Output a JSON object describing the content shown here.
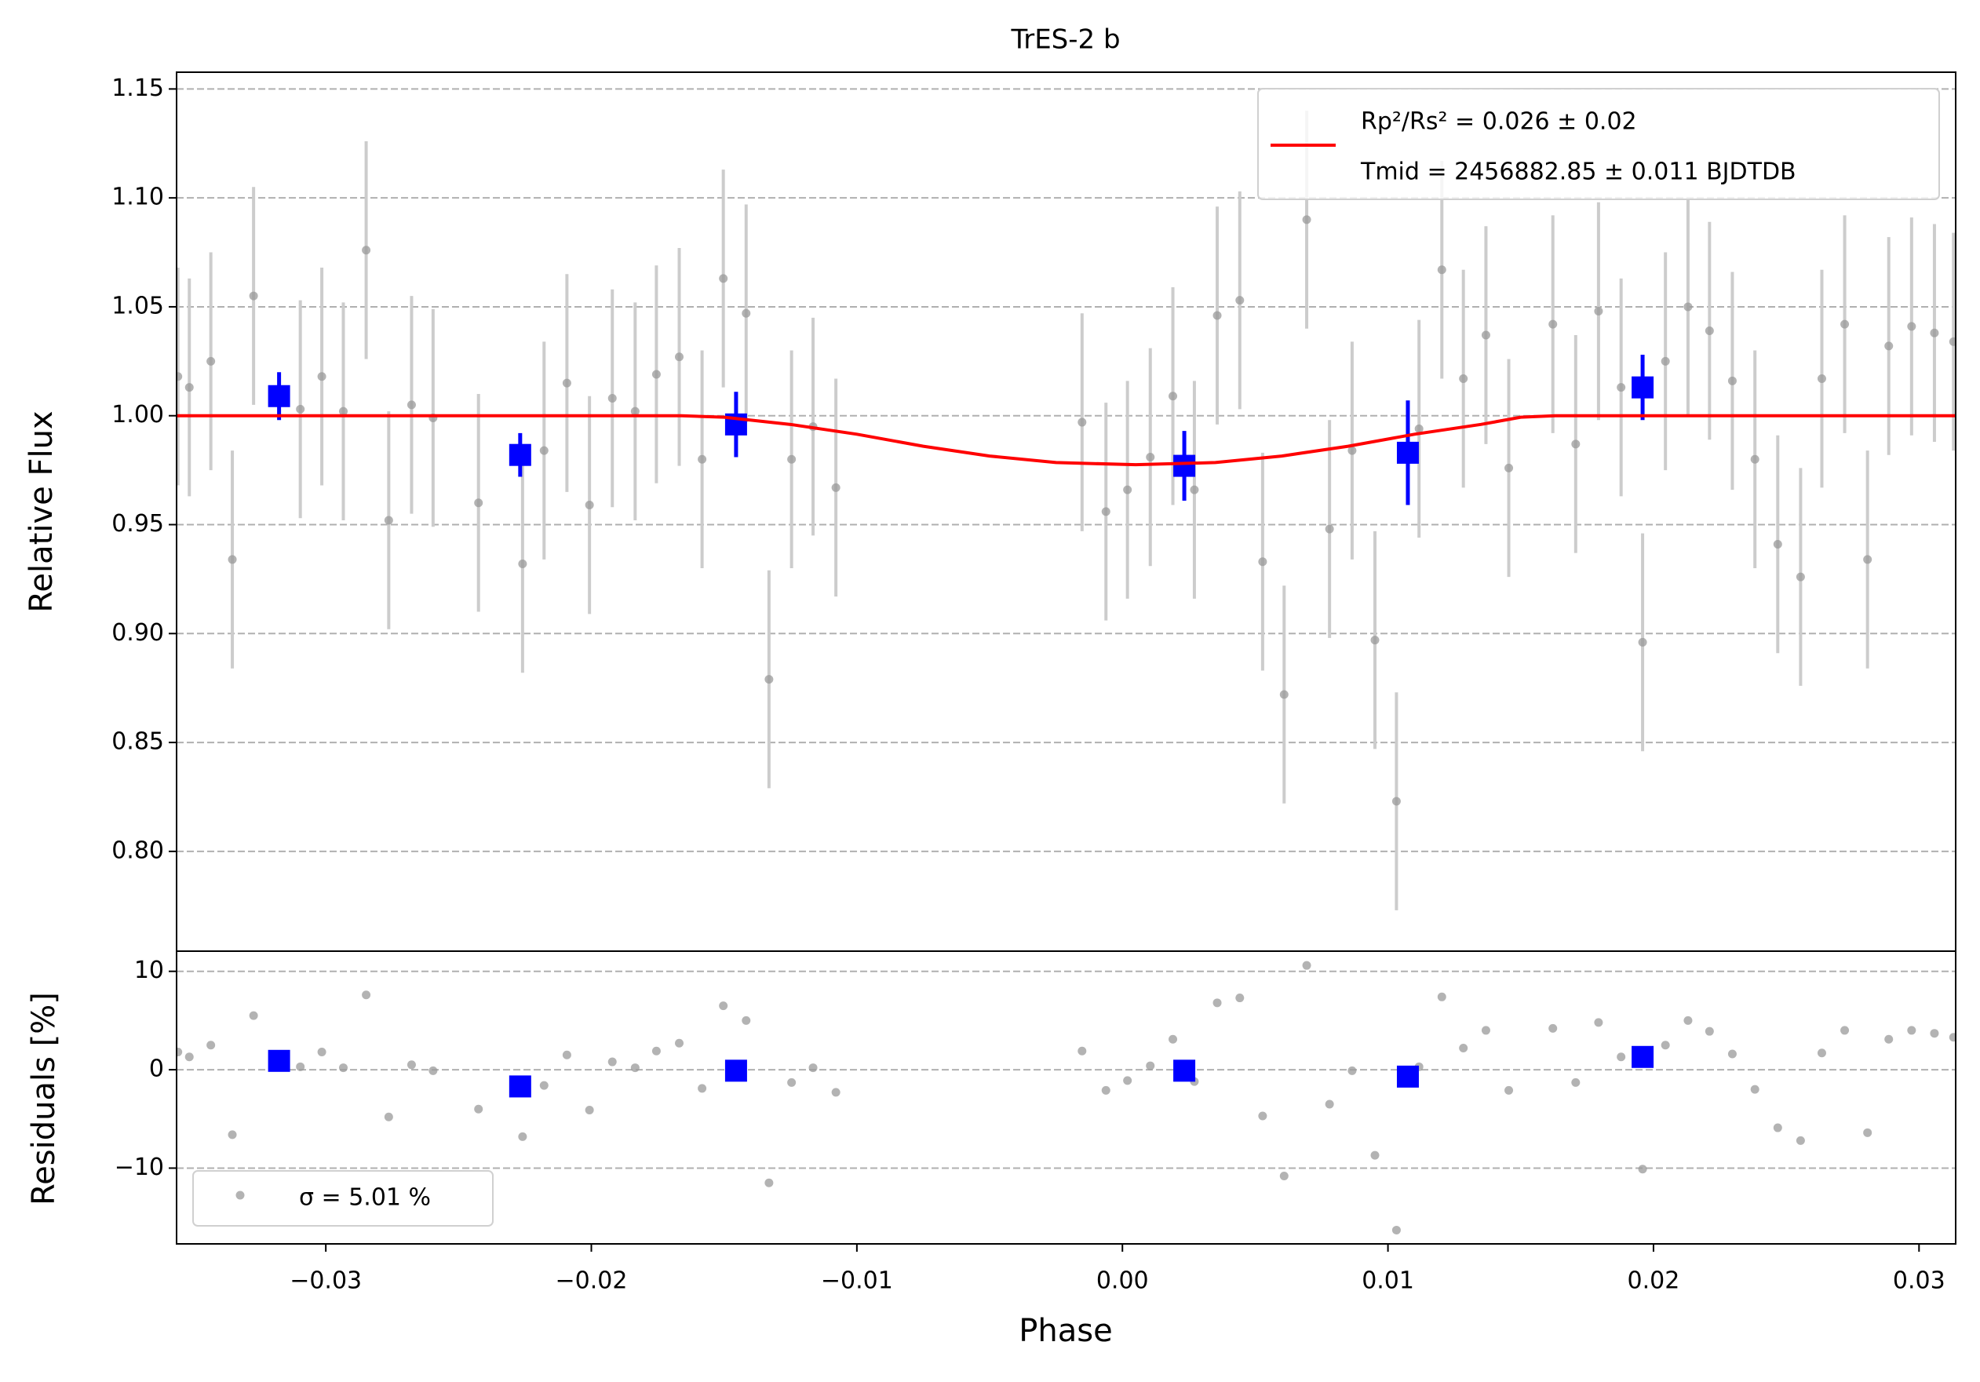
{
  "chart_data": [
    {
      "type": "scatter",
      "title": "TrES-2 b",
      "ylabel": "Relative Flux",
      "xlim": [
        -0.03562,
        0.03138
      ],
      "ylim": [
        0.7542,
        1.1577
      ],
      "yticks": [
        {
          "value": 0.8,
          "label": "0.80"
        },
        0.85,
        {
          "value": 0.9,
          "label": "0.90"
        },
        0.95,
        {
          "value": 1,
          "label": "1.00"
        },
        1.05,
        {
          "value": 1.1,
          "label": "1.10"
        },
        1.15
      ],
      "grid": true,
      "legend": "upper right",
      "legend_note": "Tmid = 2456882.85 ± 0.011 BJDTDB",
      "series": [
        {
          "color": "#999999",
          "ecolor": "#cccccc",
          "x": [
            -0.03557,
            -0.03514,
            -0.03433,
            -0.03352,
            -0.03272,
            -0.03096,
            -0.03015,
            -0.02934,
            -0.02848,
            -0.02763,
            -0.02677,
            -0.02596,
            -0.02425,
            -0.02259,
            -0.02178,
            -0.02092,
            -0.02007,
            -0.01921,
            -0.01835,
            -0.01755,
            -0.01669,
            -0.01583,
            -0.01503,
            -0.01417,
            -0.01331,
            -0.01246,
            -0.01165,
            -0.01079,
            -0.00152,
            -0.00062,
            0.00019,
            0.00105,
            0.0019,
            0.00271,
            0.00357,
            0.00442,
            0.00528,
            0.00609,
            0.00694,
            0.0078,
            0.00865,
            0.00951,
            0.01032,
            0.01117,
            0.01203,
            0.01284,
            0.01369,
            0.01455,
            0.01621,
            0.01707,
            0.01793,
            0.01878,
            0.01959,
            0.02045,
            0.0213,
            0.02211,
            0.02297,
            0.02382,
            0.02468,
            0.02554,
            0.02634,
            0.0272,
            0.02806,
            0.02886,
            0.02972,
            0.03058,
            0.0313
          ],
          "values": [
            1.018,
            1.013,
            1.025,
            0.934,
            1.055,
            1.003,
            1.018,
            1.002,
            1.076,
            0.952,
            1.005,
            0.999,
            0.96,
            0.932,
            0.984,
            1.015,
            0.959,
            1.008,
            1.002,
            1.019,
            1.027,
            0.98,
            1.063,
            1.047,
            0.879,
            0.98,
            0.995,
            0.967,
            0.997,
            0.956,
            0.966,
            0.981,
            1.009,
            0.966,
            1.046,
            1.053,
            0.933,
            0.872,
            1.09,
            0.948,
            0.984,
            0.897,
            0.823,
            0.994,
            1.067,
            1.017,
            1.037,
            0.976,
            1.042,
            0.987,
            1.048,
            1.013,
            0.896,
            1.025,
            1.05,
            1.039,
            1.016,
            0.98,
            0.941,
            0.926,
            1.017,
            1.042,
            0.934,
            1.032,
            1.041,
            1.038,
            1.034
          ],
          "errors": [
            0.05,
            0.05,
            0.05,
            0.05,
            0.05,
            0.05,
            0.05,
            0.05,
            0.05,
            0.05,
            0.05,
            0.05,
            0.05,
            0.05,
            0.05,
            0.05,
            0.05,
            0.05,
            0.05,
            0.05,
            0.05,
            0.05,
            0.05,
            0.05,
            0.05,
            0.05,
            0.05,
            0.05,
            0.05,
            0.05,
            0.05,
            0.05,
            0.05,
            0.05,
            0.05,
            0.05,
            0.05,
            0.05,
            0.05,
            0.05,
            0.05,
            0.05,
            0.05,
            0.05,
            0.05,
            0.05,
            0.05,
            0.05,
            0.05,
            0.05,
            0.05,
            0.05,
            0.05,
            0.05,
            0.05,
            0.05,
            0.05,
            0.05,
            0.05,
            0.05,
            0.05,
            0.05,
            0.05,
            0.05,
            0.05,
            0.05,
            0.05
          ]
        },
        {
          "color": "#0000ff",
          "ecolor": "#0000ff",
          "marker": "square",
          "x": [
            -0.03176,
            -0.02268,
            -0.01455,
            0.00233,
            0.01075,
            0.01959
          ],
          "values": [
            1.009,
            0.982,
            0.996,
            0.977,
            0.983,
            1.013
          ],
          "errors": [
            0.011,
            0.01,
            0.015,
            0.016,
            0.024,
            0.015
          ]
        },
        {
          "type": "line",
          "name": "Rp²/Rs² = 0.026 ± 0.02",
          "color": "#ff0000",
          "x": [
            -0.0356,
            -0.0166,
            -0.015,
            -0.0125,
            -0.01,
            -0.0075,
            -0.005,
            -0.0025,
            0.0005,
            0.0035,
            0.006,
            0.0085,
            0.011,
            0.0135,
            0.015,
            0.0163,
            0.0314
          ],
          "values": [
            1.0,
            1.0,
            0.9993,
            0.996,
            0.9915,
            0.986,
            0.9815,
            0.9785,
            0.9775,
            0.9785,
            0.9815,
            0.986,
            0.9915,
            0.996,
            0.9993,
            1.0,
            1.0
          ]
        }
      ]
    },
    {
      "type": "scatter",
      "xlabel": "Phase",
      "ylabel": "Residuals [%]",
      "xlim": [
        -0.03562,
        0.03138
      ],
      "ylim": [
        -17.7,
        12.05
      ],
      "xticks": [
        {
          "value": -0.03,
          "label": "−0.03"
        },
        {
          "value": -0.02,
          "label": "−0.02"
        },
        {
          "value": -0.01,
          "label": "−0.01"
        },
        {
          "value": 0,
          "label": "0.00"
        },
        0.01,
        0.02,
        0.03
      ],
      "yticks": [
        {
          "value": -10,
          "label": "−10"
        },
        0,
        10
      ],
      "grid": true,
      "legend": "lower left",
      "series": [
        {
          "name": "σ = 5.01 %",
          "color": "#999999",
          "x": [
            -0.03557,
            -0.03514,
            -0.03433,
            -0.03352,
            -0.03272,
            -0.03096,
            -0.03015,
            -0.02934,
            -0.02848,
            -0.02763,
            -0.02677,
            -0.02596,
            -0.02425,
            -0.02259,
            -0.02178,
            -0.02092,
            -0.02007,
            -0.01921,
            -0.01835,
            -0.01755,
            -0.01669,
            -0.01583,
            -0.01503,
            -0.01417,
            -0.01331,
            -0.01246,
            -0.01165,
            -0.01079,
            -0.00152,
            -0.00062,
            0.00019,
            0.00105,
            0.0019,
            0.00271,
            0.00357,
            0.00442,
            0.00528,
            0.00609,
            0.00694,
            0.0078,
            0.00865,
            0.00951,
            0.01032,
            0.01117,
            0.01203,
            0.01284,
            0.01369,
            0.01455,
            0.01621,
            0.01707,
            0.01793,
            0.01878,
            0.01959,
            0.02045,
            0.0213,
            0.02211,
            0.02297,
            0.02382,
            0.02468,
            0.02554,
            0.02634,
            0.0272,
            0.02806,
            0.02886,
            0.02972,
            0.03058,
            0.0313
          ],
          "values": [
            1.8,
            1.3,
            2.5,
            -6.6,
            5.5,
            0.3,
            1.8,
            0.2,
            7.6,
            -4.8,
            0.5,
            -0.1,
            -4.0,
            -6.8,
            -1.6,
            1.5,
            -4.1,
            0.8,
            0.2,
            1.9,
            2.7,
            -1.9,
            6.5,
            5.0,
            -11.5,
            -1.3,
            0.2,
            -2.3,
            1.9,
            -2.1,
            -1.1,
            0.4,
            3.1,
            -1.2,
            6.8,
            7.3,
            -4.7,
            -10.8,
            10.6,
            -3.5,
            -0.1,
            -8.7,
            -16.3,
            0.3,
            7.4,
            2.2,
            4.0,
            -2.1,
            4.2,
            -1.3,
            4.8,
            1.3,
            -10.1,
            2.5,
            5.0,
            3.9,
            1.6,
            -2.0,
            -5.9,
            -7.2,
            1.7,
            4.0,
            -6.4,
            3.1,
            4.0,
            3.7,
            3.3
          ]
        },
        {
          "color": "#0000ff",
          "marker": "square",
          "x": [
            -0.03176,
            -0.02268,
            -0.01455,
            0.00233,
            0.01075,
            0.01959
          ],
          "values": [
            0.9,
            -1.7,
            -0.1,
            -0.1,
            -0.7,
            1.3
          ]
        }
      ]
    }
  ]
}
